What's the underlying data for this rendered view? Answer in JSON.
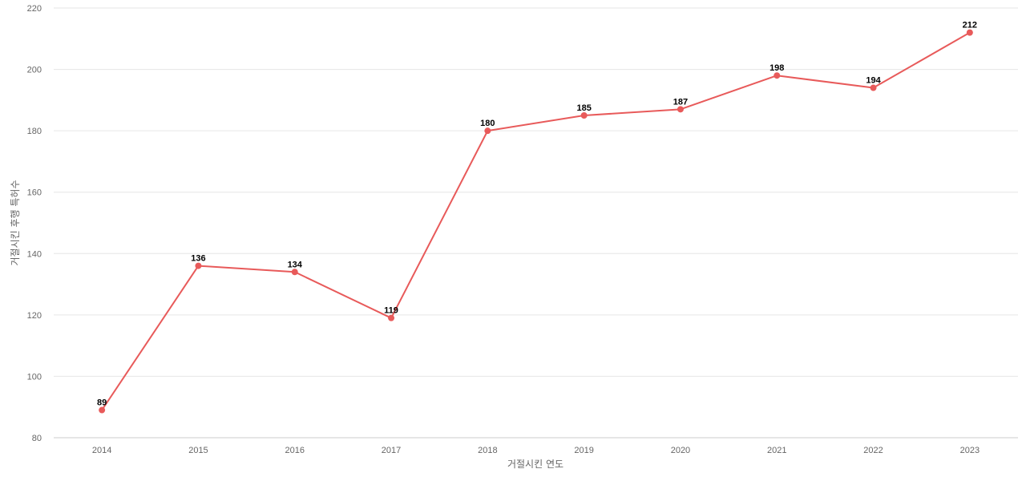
{
  "chart_data": {
    "type": "line",
    "xlabel": "거절시킨 연도",
    "ylabel": "거절시킨 후행 특허수",
    "ylim": [
      80,
      220
    ],
    "yticks": [
      80,
      100,
      120,
      140,
      160,
      180,
      200,
      220
    ],
    "grid": true,
    "categories": [
      "2014",
      "2015",
      "2016",
      "2017",
      "2018",
      "2019",
      "2020",
      "2021",
      "2022",
      "2023"
    ],
    "series": [
      {
        "values": [
          89,
          136,
          134,
          119,
          180,
          185,
          187,
          198,
          194,
          212
        ],
        "color": "#e85a5a"
      }
    ],
    "data_labels": true
  }
}
